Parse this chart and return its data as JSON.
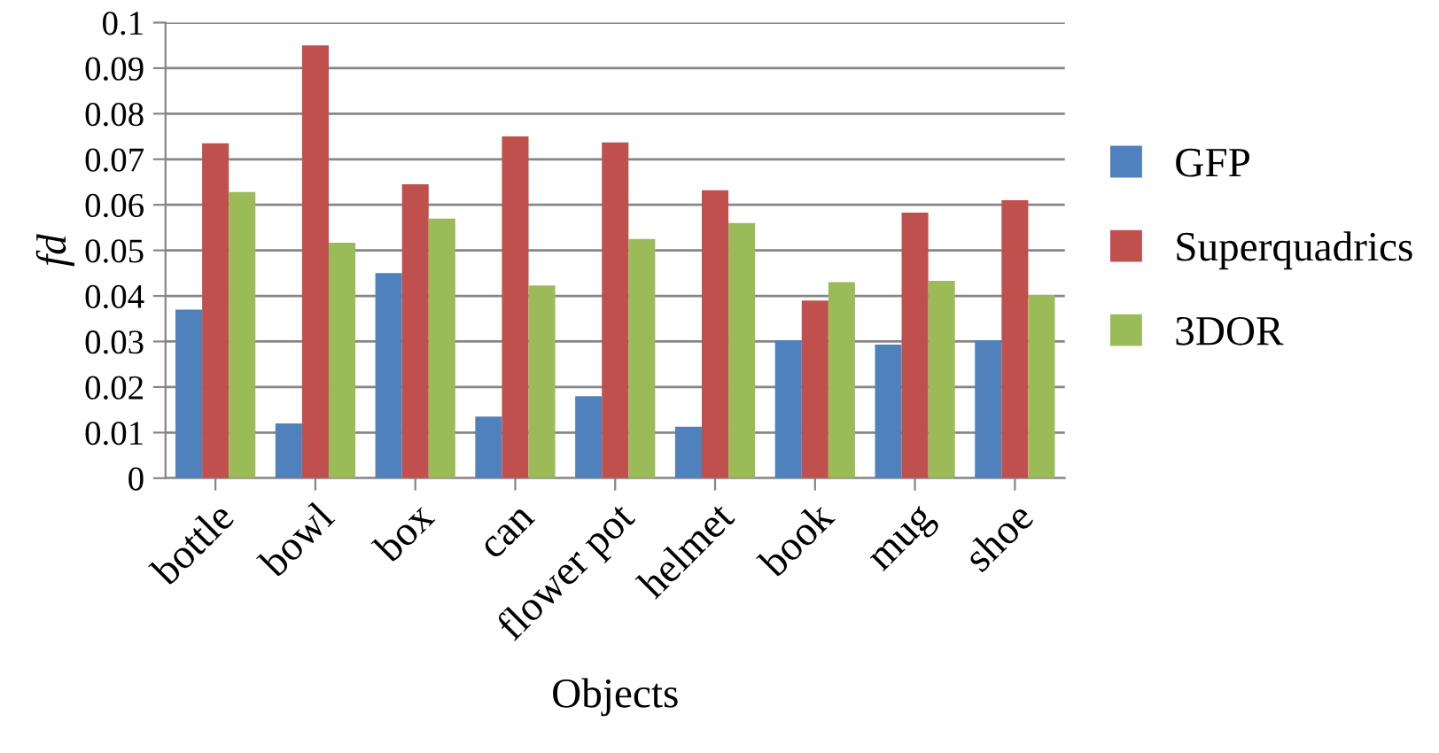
{
  "chart_data": {
    "type": "bar",
    "xlabel": "Objects",
    "ylabel": "fd",
    "categories": [
      "bottle",
      "bowl",
      "box",
      "can",
      "flower pot",
      "helmet",
      "book",
      "mug",
      "shoe"
    ],
    "series": [
      {
        "name": "GFP",
        "color": "#4f81bd",
        "values": [
          0.037,
          0.012,
          0.045,
          0.0135,
          0.018,
          0.0113,
          0.0303,
          0.0293,
          0.0303
        ]
      },
      {
        "name": "Superquadrics",
        "color": "#c0504d",
        "values": [
          0.0735,
          0.095,
          0.0645,
          0.075,
          0.0737,
          0.0632,
          0.039,
          0.0583,
          0.061
        ]
      },
      {
        "name": "3DOR",
        "color": "#9bbb59",
        "values": [
          0.0628,
          0.0517,
          0.057,
          0.0423,
          0.0525,
          0.056,
          0.043,
          0.0433,
          0.0402
        ]
      }
    ],
    "ylim": [
      0,
      0.1
    ],
    "yticks": [
      0,
      0.01,
      0.02,
      0.03,
      0.04,
      0.05,
      0.06,
      0.07,
      0.08,
      0.09,
      0.1
    ],
    "grid": "y",
    "legend": "right"
  }
}
